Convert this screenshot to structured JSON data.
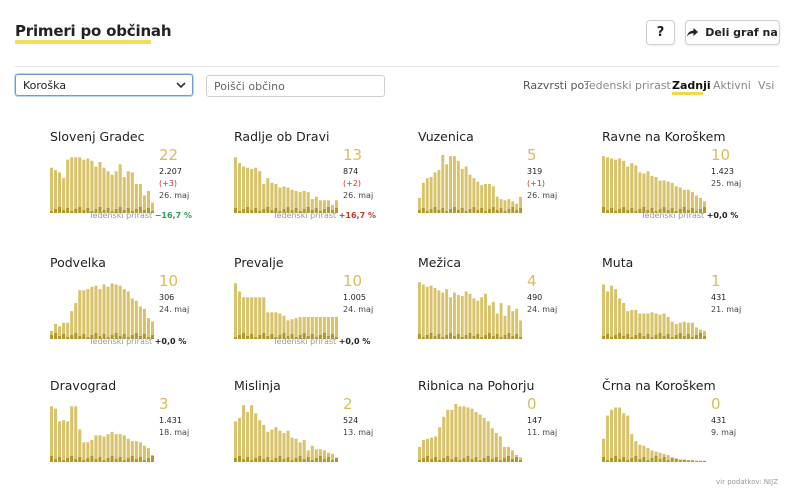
{
  "header": {
    "title": "Primeri po občinah",
    "help_label": "?",
    "share_label": "Deli graf na"
  },
  "controls": {
    "region_selected": "Koroška",
    "search_placeholder": "Poišči občino",
    "sort_label": "Razvrsti po:",
    "sort_options": [
      "Tedenski prirast",
      "Zadnji",
      "Aktivni",
      "Vsi"
    ],
    "sort_active": "Zadnji"
  },
  "weekly_label": "Tedenski prirast",
  "source": "vir podatkov: NIJZ",
  "colors": {
    "bar": "#d8c26a",
    "bar_dark": "#a08a1a",
    "accent": "#f0d84a",
    "negative": "#2e9b53",
    "positive": "#c0392b"
  },
  "chart_data": [
    {
      "type": "bar",
      "title": "Slovenj Gradec",
      "big": "22",
      "count": "2.207",
      "delta": "(+3)",
      "date": "26. maj",
      "weekly": "−16,7 %",
      "weekly_sign": "neg",
      "values": [
        0.78,
        0.74,
        0.7,
        0.6,
        0.92,
        0.96,
        0.96,
        0.96,
        0.92,
        0.94,
        0.9,
        0.8,
        0.88,
        0.78,
        0.72,
        0.66,
        0.72,
        0.84,
        0.62,
        0.72,
        0.7,
        0.5,
        0.5,
        0.3,
        0.38,
        0.18
      ]
    },
    {
      "type": "bar",
      "title": "Radlje ob Dravi",
      "big": "13",
      "count": "874",
      "delta": "(+2)",
      "date": "26. maj",
      "weekly": "+16,7 %",
      "weekly_sign": "pos",
      "values": [
        0.96,
        0.86,
        0.8,
        0.78,
        0.76,
        0.78,
        0.72,
        0.5,
        0.6,
        0.52,
        0.5,
        0.44,
        0.46,
        0.44,
        0.4,
        0.38,
        0.36,
        0.38,
        0.36,
        0.24,
        0.28,
        0.22,
        0.22,
        0.22,
        0.14,
        0.22
      ]
    },
    {
      "type": "bar",
      "title": "Vuzenica",
      "big": "5",
      "count": "319",
      "delta": "(+1)",
      "date": "26. maj",
      "weekly": "",
      "values": [
        0.26,
        0.52,
        0.6,
        0.62,
        0.7,
        0.74,
        1.0,
        0.84,
        0.98,
        0.98,
        0.9,
        0.76,
        0.8,
        0.66,
        0.6,
        0.54,
        0.48,
        0.5,
        0.5,
        0.46,
        0.28,
        0.24,
        0.22,
        0.24,
        0.2,
        0.16,
        0.28
      ]
    },
    {
      "type": "bar",
      "title": "Ravne na Koroškem",
      "big": "10",
      "count": "1.423",
      "delta": "",
      "date": "25. maj",
      "weekly": "+0,0 %",
      "weekly_sign": "zero",
      "values": [
        0.98,
        0.96,
        0.94,
        0.92,
        0.94,
        0.9,
        0.8,
        0.86,
        0.82,
        0.7,
        0.68,
        0.72,
        0.64,
        0.62,
        0.56,
        0.56,
        0.54,
        0.52,
        0.46,
        0.44,
        0.4,
        0.4,
        0.36,
        0.3,
        0.26,
        0.2
      ]
    },
    {
      "type": "bar",
      "title": "Podvelka",
      "big": "10",
      "count": "306",
      "delta": "",
      "date": "24. maj",
      "weekly": "+0,0 %",
      "weekly_sign": "zero",
      "values": [
        0.14,
        0.26,
        0.22,
        0.28,
        0.28,
        0.48,
        0.62,
        0.84,
        0.84,
        0.86,
        0.9,
        0.92,
        0.86,
        0.94,
        0.9,
        0.96,
        0.94,
        0.92,
        0.86,
        0.82,
        0.7,
        0.66,
        0.56,
        0.52,
        0.36,
        0.3
      ]
    },
    {
      "type": "bar",
      "title": "Prevalje",
      "big": "10",
      "count": "1.005",
      "delta": "",
      "date": "24. maj",
      "weekly": "+0,0 %",
      "weekly_sign": "zero",
      "values": [
        0.96,
        0.82,
        0.72,
        0.72,
        0.72,
        0.72,
        0.72,
        0.72,
        0.46,
        0.46,
        0.46,
        0.44,
        0.4,
        0.32,
        0.34,
        0.36,
        0.38,
        0.38,
        0.38,
        0.38,
        0.38,
        0.38,
        0.38,
        0.38,
        0.38,
        0.38
      ]
    },
    {
      "type": "bar",
      "title": "Mežica",
      "big": "4",
      "count": "490",
      "delta": "",
      "date": "24. maj",
      "weekly": "",
      "values": [
        0.98,
        0.94,
        0.9,
        0.92,
        0.88,
        0.84,
        0.8,
        0.86,
        0.72,
        0.8,
        0.76,
        0.74,
        0.82,
        0.78,
        0.7,
        0.66,
        0.72,
        0.78,
        0.58,
        0.64,
        0.44,
        0.62,
        0.4,
        0.58,
        0.48,
        0.52,
        0.32
      ]
    },
    {
      "type": "bar",
      "title": "Muta",
      "big": "1",
      "count": "431",
      "delta": "",
      "date": "21. maj",
      "weekly": "",
      "values": [
        0.94,
        0.82,
        0.92,
        0.86,
        0.7,
        0.62,
        0.48,
        0.5,
        0.5,
        0.44,
        0.44,
        0.44,
        0.46,
        0.44,
        0.42,
        0.44,
        0.38,
        0.3,
        0.26,
        0.28,
        0.3,
        0.28,
        0.28,
        0.2,
        0.16,
        0.14
      ]
    },
    {
      "type": "bar",
      "title": "Dravograd",
      "big": "3",
      "count": "1.431",
      "delta": "",
      "date": "18. maj",
      "weekly": "",
      "values": [
        0.96,
        0.92,
        0.7,
        0.72,
        0.7,
        0.96,
        0.96,
        0.56,
        0.34,
        0.34,
        0.38,
        0.46,
        0.46,
        0.44,
        0.48,
        0.52,
        0.48,
        0.48,
        0.46,
        0.4,
        0.36,
        0.36,
        0.34,
        0.28,
        0.24,
        0.12
      ]
    },
    {
      "type": "bar",
      "title": "Mislinja",
      "big": "2",
      "count": "524",
      "delta": "",
      "date": "13. maj",
      "weekly": "",
      "values": [
        0.7,
        0.76,
        0.98,
        0.86,
        0.98,
        0.84,
        0.72,
        0.64,
        0.52,
        0.56,
        0.6,
        0.54,
        0.5,
        0.54,
        0.42,
        0.4,
        0.34,
        0.38,
        0.2,
        0.28,
        0.22,
        0.22,
        0.2,
        0.16,
        0.14,
        0.08
      ]
    },
    {
      "type": "bar",
      "title": "Ribnica na Pohorju",
      "big": "0",
      "count": "147",
      "delta": "",
      "date": "11. maj",
      "weekly": "",
      "values": [
        0.26,
        0.38,
        0.4,
        0.42,
        0.44,
        0.6,
        0.78,
        0.9,
        0.9,
        1.0,
        0.96,
        0.96,
        0.94,
        0.92,
        0.86,
        0.82,
        0.76,
        0.7,
        0.58,
        0.5,
        0.44,
        0.26,
        0.26,
        0.2,
        0.12,
        0.08
      ]
    },
    {
      "type": "bar",
      "title": "Črna na Koroškem",
      "big": "0",
      "count": "431",
      "delta": "",
      "date": "9. maj",
      "weekly": "",
      "values": [
        0.4,
        0.8,
        0.9,
        0.94,
        0.94,
        0.84,
        0.8,
        0.48,
        0.36,
        0.3,
        0.28,
        0.24,
        0.2,
        0.18,
        0.16,
        0.14,
        0.12,
        0.08,
        0.06,
        0.04,
        0.04,
        0.03,
        0.03,
        0.02,
        0.02,
        0.02
      ]
    }
  ]
}
